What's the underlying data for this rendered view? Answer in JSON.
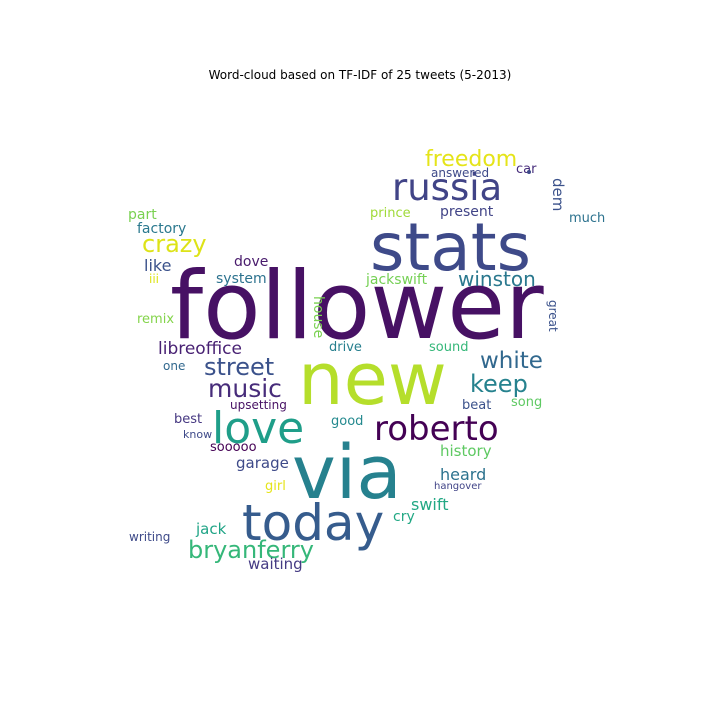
{
  "chart_data": {
    "type": "wordcloud",
    "title": "Word-cloud based on TF-IDF of 25 tweets (5-2013)",
    "shape": "bird",
    "colormap": "viridis",
    "words": [
      {
        "text": "follower",
        "color": "#471164"
      },
      {
        "text": "new",
        "color": "#b5de2b"
      },
      {
        "text": "via",
        "color": "#26818e"
      },
      {
        "text": "stats",
        "color": "#3e4a89"
      },
      {
        "text": "today",
        "color": "#365c8d"
      },
      {
        "text": "love",
        "color": "#1f9e89"
      },
      {
        "text": "roberto",
        "color": "#440154"
      },
      {
        "text": "russia",
        "color": "#414487"
      },
      {
        "text": "bryanferry",
        "color": "#35b779"
      },
      {
        "text": "street",
        "color": "#3b528b"
      },
      {
        "text": "white",
        "color": "#31688e"
      },
      {
        "text": "keep",
        "color": "#26828e"
      },
      {
        "text": "crazy",
        "color": "#dde318"
      },
      {
        "text": "music",
        "color": "#472c7a"
      },
      {
        "text": "freedom",
        "color": "#e5e419"
      },
      {
        "text": "winston",
        "color": "#2a788e"
      },
      {
        "text": "libreoffice",
        "color": "#482173"
      },
      {
        "text": "garage",
        "color": "#3e4a89"
      },
      {
        "text": "history",
        "color": "#5ec962"
      },
      {
        "text": "heard",
        "color": "#2c728e"
      },
      {
        "text": "swift",
        "color": "#22a884"
      },
      {
        "text": "waiting",
        "color": "#443a83"
      },
      {
        "text": "jack",
        "color": "#20a486"
      },
      {
        "text": "present",
        "color": "#414487"
      },
      {
        "text": "dem",
        "color": "#3b528b"
      },
      {
        "text": "like",
        "color": "#3b528b"
      },
      {
        "text": "part",
        "color": "#7ad151"
      },
      {
        "text": "factory",
        "color": "#2a788e"
      },
      {
        "text": "dove",
        "color": "#481a6c"
      },
      {
        "text": "system",
        "color": "#2c728e"
      },
      {
        "text": "jackswift",
        "color": "#75d054"
      },
      {
        "text": "prince",
        "color": "#a0da39"
      },
      {
        "text": "much",
        "color": "#2c728e"
      },
      {
        "text": "car",
        "color": "#472d7b"
      },
      {
        "text": "answered",
        "color": "#3e4a89"
      },
      {
        "text": "house",
        "color": "#7ad151"
      },
      {
        "text": "drive",
        "color": "#277f8e"
      },
      {
        "text": "sound",
        "color": "#35b779"
      },
      {
        "text": "great",
        "color": "#3b528b"
      },
      {
        "text": "remix",
        "color": "#84d44b"
      },
      {
        "text": "iii",
        "color": "#dde318"
      },
      {
        "text": "one",
        "color": "#31688e"
      },
      {
        "text": "upsetting",
        "color": "#471164"
      },
      {
        "text": "best",
        "color": "#453781"
      },
      {
        "text": "know",
        "color": "#3e4a89"
      },
      {
        "text": "good",
        "color": "#23898e"
      },
      {
        "text": "beat",
        "color": "#3b528b"
      },
      {
        "text": "song",
        "color": "#5ec962"
      },
      {
        "text": "sooooo",
        "color": "#440154"
      },
      {
        "text": "girl",
        "color": "#e5e419"
      },
      {
        "text": "hangover",
        "color": "#414487"
      },
      {
        "text": "cry",
        "color": "#22a884"
      },
      {
        "text": "writing",
        "color": "#3e4a89"
      }
    ]
  }
}
